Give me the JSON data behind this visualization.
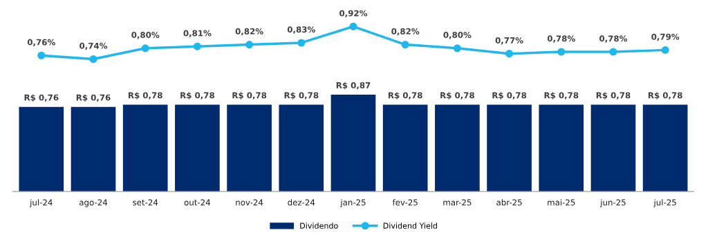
{
  "chart_data": [
    {
      "type": "line",
      "categories": [
        null,
        null,
        null,
        null,
        null,
        null,
        null,
        null,
        null,
        null,
        null,
        null,
        null
      ],
      "series": [
        {
          "name": "Dividend Yield",
          "color": "#1cb8ee",
          "values": [
            0.76,
            0.74,
            0.8,
            0.81,
            0.82,
            0.83,
            0.92,
            0.82,
            0.8,
            0.77,
            0.78,
            0.78,
            0.79
          ],
          "value_labels": [
            "0,76%",
            "0,74%",
            "0,80%",
            "0,81%",
            "0,82%",
            "0,83%",
            "0,92%",
            "0,82%",
            "0,80%",
            "0,77%",
            "0,78%",
            "0,78%",
            "0,79%"
          ]
        }
      ],
      "marker": "circle",
      "line_style": "solid",
      "tick_labels": false,
      "grid": false,
      "legend": "bottom"
    },
    {
      "type": "bar",
      "categories": [
        "jul-24",
        "ago-24",
        "set-24",
        "out-24",
        "nov-24",
        "dez-24",
        "jan-25",
        "fev-25",
        "mar-25",
        "abr-25",
        "mai-25",
        "jun-25",
        "jul-25"
      ],
      "series": [
        {
          "name": "Dividendo",
          "color": "#002b6f",
          "values": [
            0.76,
            0.76,
            0.78,
            0.78,
            0.78,
            0.78,
            0.87,
            0.78,
            0.78,
            0.78,
            0.78,
            0.78,
            0.78
          ],
          "value_labels": [
            "R$ 0,76",
            "R$ 0,76",
            "R$ 0,78",
            "R$ 0,78",
            "R$ 0,78",
            "R$ 0,78",
            "R$ 0,87",
            "R$ 0,78",
            "R$ 0,78",
            "R$ 0,78",
            "R$ 0,78",
            "R$ 0,78",
            "R$ 0,78"
          ]
        }
      ],
      "tick_labels": "x",
      "grid": false,
      "legend": "bottom"
    }
  ]
}
